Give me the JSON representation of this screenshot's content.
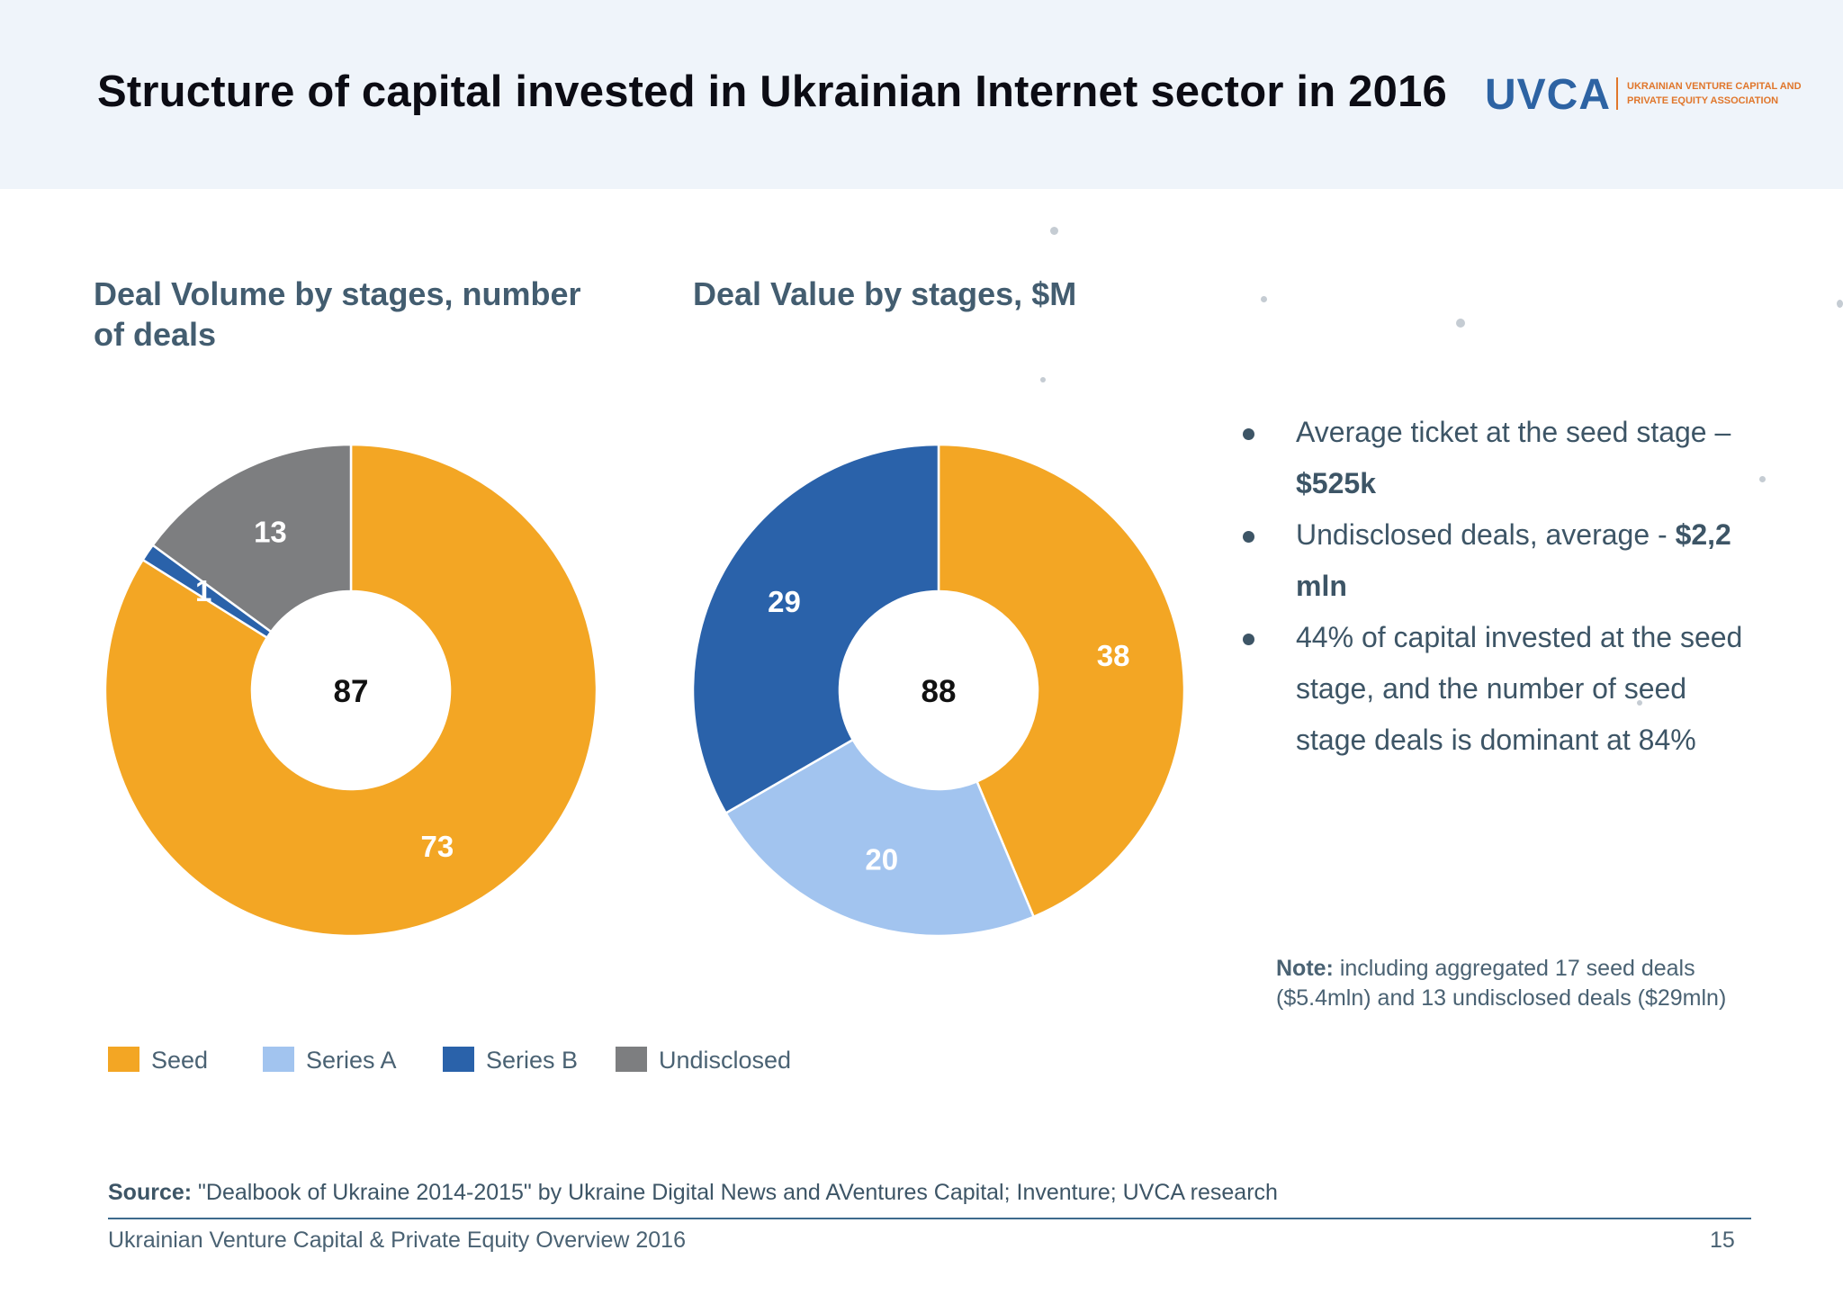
{
  "header": {
    "title": "Structure of capital invested in Ukrainian Internet sector in 2016",
    "logo_mark": "UVCA",
    "logo_subtitle": "UKRAINIAN VENTURE CAPITAL AND PRIVATE EQUITY ASSOCIATION",
    "logo_color": "#2d63a3",
    "logo_accent": "#e0762b"
  },
  "colors": {
    "seed": "#f3a624",
    "series_a": "#a2c4ef",
    "series_b": "#2a62aa",
    "undisclosed": "#7d7e80"
  },
  "chart_data": [
    {
      "type": "pie",
      "title": "Deal Volume by stages, number of deals",
      "center_label": "87",
      "categories": [
        "Seed",
        "Series B",
        "Undisclosed"
      ],
      "values": [
        73,
        1,
        13
      ],
      "labels": [
        "73",
        "1",
        "13"
      ],
      "colors": [
        "#f3a624",
        "#2a62aa",
        "#7d7e80"
      ]
    },
    {
      "type": "pie",
      "title": "Deal Value by stages, $M",
      "center_label": "88",
      "categories": [
        "Seed",
        "Series A",
        "Series B"
      ],
      "values": [
        38,
        20,
        29
      ],
      "labels": [
        "38",
        "20",
        "29"
      ],
      "colors": [
        "#f3a624",
        "#a2c4ef",
        "#2a62aa"
      ]
    }
  ],
  "legend": [
    {
      "label": "Seed",
      "color": "#f3a624"
    },
    {
      "label": "Series A",
      "color": "#a2c4ef"
    },
    {
      "label": "Series B",
      "color": "#2a62aa"
    },
    {
      "label": "Undisclosed",
      "color": "#7d7e80"
    }
  ],
  "bullets": [
    {
      "text": "Average ticket at the seed stage – ",
      "highlight": "$525k"
    },
    {
      "text": "Undisclosed deals, average - ",
      "highlight": "$2,2 mln"
    },
    {
      "text": "44% of capital invested at the seed stage, and the number of seed stage deals is dominant at 84%",
      "highlight": ""
    }
  ],
  "note": {
    "label": "Note:",
    "text": " including aggregated 17 seed deals ($5.4mln) and 13 undisclosed deals ($29mln)"
  },
  "source": {
    "label": "Source:",
    "text": " \"Dealbook of Ukraine 2014-2015\" by Ukraine Digital News and AVentures Capital; Inventure; UVCA research"
  },
  "footer": {
    "text": "Ukrainian Venture Capital & Private Equity Overview 2016",
    "page_number": "15"
  }
}
